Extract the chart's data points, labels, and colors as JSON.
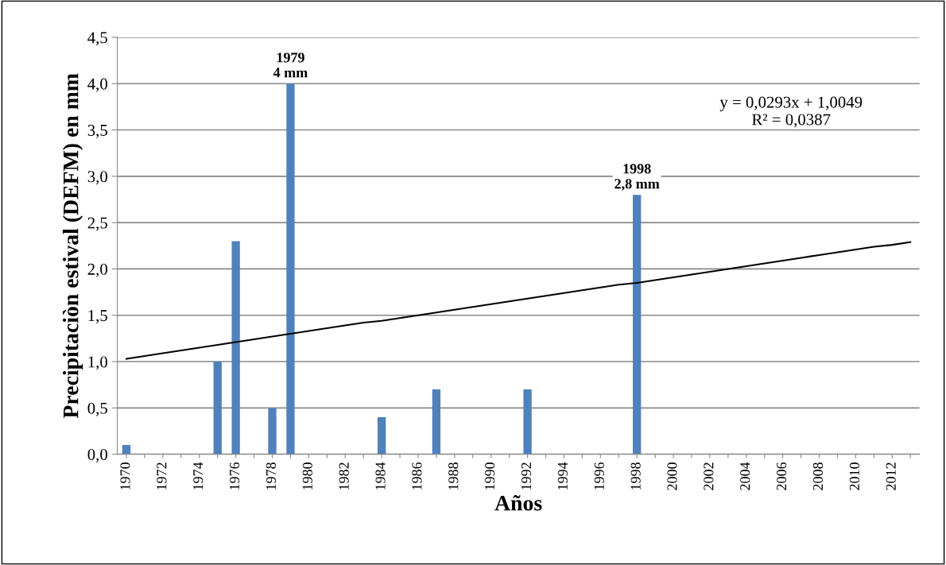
{
  "chart_data": {
    "type": "bar",
    "xlabel": "Años",
    "ylabel": "Precipitaciòn estival (DEFM) en mm",
    "categories": [
      "1970",
      null,
      "1972",
      null,
      "1974",
      null,
      "1976",
      null,
      "1978",
      null,
      "1980",
      null,
      "1982",
      null,
      "1984",
      null,
      "1986",
      null,
      "1988",
      null,
      "1990",
      null,
      "1992",
      null,
      "1994",
      null,
      "1996",
      null,
      "1998",
      null,
      "2000",
      null,
      "2002",
      null,
      "2004",
      null,
      "2006",
      null,
      "2008",
      null,
      "2010",
      null,
      "2012",
      null
    ],
    "series": [
      {
        "color": "#4f81bd",
        "values": [
          0.1,
          0,
          0,
          0,
          0,
          1.0,
          2.3,
          0,
          0.5,
          4.0,
          0,
          0,
          0,
          0,
          0.4,
          0,
          0,
          0.7,
          0,
          0,
          0,
          0,
          0.7,
          0,
          0,
          0,
          0,
          0,
          2.8,
          0,
          0,
          0,
          0,
          0,
          0,
          0,
          0,
          0,
          0,
          0,
          0,
          0,
          0,
          0
        ],
        "value_labels": [
          null,
          null,
          null,
          null,
          null,
          null,
          null,
          null,
          null,
          "1979\n4 mm",
          null,
          null,
          null,
          null,
          null,
          null,
          null,
          null,
          null,
          null,
          null,
          null,
          null,
          null,
          null,
          null,
          null,
          null,
          "1998\n2,8 mm",
          null,
          null,
          null,
          null,
          null,
          null,
          null,
          null,
          null,
          null,
          null,
          null,
          null,
          null,
          null
        ]
      },
      {
        "type": "line",
        "color": "#000000",
        "values": [
          1.03,
          1.06,
          1.09,
          1.12,
          1.15,
          1.18,
          1.21,
          1.24,
          1.27,
          1.3,
          1.33,
          1.36,
          1.39,
          1.42,
          1.44,
          1.47,
          1.5,
          1.53,
          1.56,
          1.59,
          1.62,
          1.65,
          1.68,
          1.71,
          1.74,
          1.77,
          1.8,
          1.83,
          1.85,
          1.88,
          1.91,
          1.94,
          1.97,
          2.0,
          2.03,
          2.06,
          2.09,
          2.12,
          2.15,
          2.18,
          2.21,
          2.24,
          2.26,
          2.29
        ]
      }
    ],
    "ylim": [
      0,
      4.5
    ],
    "yticks": [
      {
        "value": 0,
        "label": "0,0"
      },
      {
        "value": 0.5,
        "label": "0,5"
      },
      {
        "value": 1,
        "label": "1,0"
      },
      {
        "value": 1.5,
        "label": "1,5"
      },
      {
        "value": 2,
        "label": "2,0"
      },
      {
        "value": 2.5,
        "label": "2,5"
      },
      {
        "value": 3,
        "label": "3,0"
      },
      {
        "value": 3.5,
        "label": "3,5"
      },
      {
        "value": 4,
        "label": "4,0"
      },
      {
        "value": 4.5,
        "label": "4,5"
      }
    ],
    "grid": "y",
    "annotations": [
      "y = 0,0293x + 1,0049\nR² = 0,0387"
    ]
  }
}
